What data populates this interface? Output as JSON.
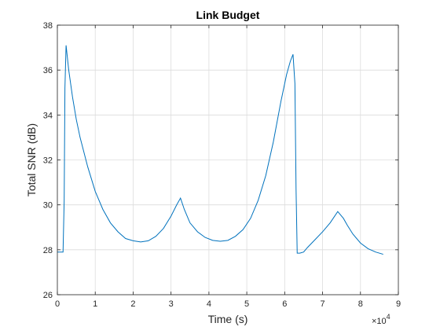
{
  "chart_data": {
    "type": "line",
    "title": "Link Budget",
    "xlabel": "Time (s)",
    "ylabel": "Total SNR (dB)",
    "x_exponent_label": {
      "base": "×10",
      "exp": "4"
    },
    "xlim": [
      0,
      90000
    ],
    "ylim": [
      26,
      38
    ],
    "xticks": [
      0,
      10000,
      20000,
      30000,
      40000,
      50000,
      60000,
      70000,
      80000,
      90000
    ],
    "xtick_labels": [
      "0",
      "1",
      "2",
      "3",
      "4",
      "5",
      "6",
      "7",
      "8",
      "9"
    ],
    "yticks": [
      26,
      28,
      30,
      32,
      34,
      36,
      38
    ],
    "ytick_labels": [
      "26",
      "28",
      "30",
      "32",
      "34",
      "36",
      "38"
    ],
    "grid": true,
    "line_color": "#0072bd",
    "series": [
      {
        "x": [
          0,
          1500,
          1800,
          2000,
          2300,
          3000,
          4000,
          5000,
          6000,
          8000,
          10000,
          12000,
          14000,
          16000,
          18000,
          20000,
          22000,
          24000,
          26000,
          28000,
          30000,
          31500,
          32500,
          33500,
          35000,
          37000,
          39000,
          41000,
          43000,
          45000,
          47000,
          49000,
          51000,
          53000,
          55000,
          57000,
          59000,
          60500,
          61500,
          62200,
          62700,
          63000,
          63300,
          64000,
          65000,
          66000,
          68000,
          70000,
          72000,
          74000,
          75500,
          76500,
          78000,
          80000,
          82000,
          84000,
          86000
        ],
        "y": [
          27.9,
          27.9,
          30.2,
          35.2,
          37.1,
          36.0,
          34.8,
          33.8,
          33.0,
          31.7,
          30.6,
          29.8,
          29.2,
          28.8,
          28.5,
          28.4,
          28.35,
          28.4,
          28.6,
          28.95,
          29.5,
          30.0,
          30.3,
          29.8,
          29.2,
          28.8,
          28.55,
          28.42,
          28.38,
          28.42,
          28.6,
          28.9,
          29.4,
          30.2,
          31.3,
          32.8,
          34.6,
          35.8,
          36.4,
          36.7,
          35.4,
          30.7,
          27.85,
          27.85,
          27.9,
          28.1,
          28.45,
          28.8,
          29.2,
          29.7,
          29.4,
          29.1,
          28.7,
          28.3,
          28.05,
          27.9,
          27.8
        ]
      }
    ]
  }
}
